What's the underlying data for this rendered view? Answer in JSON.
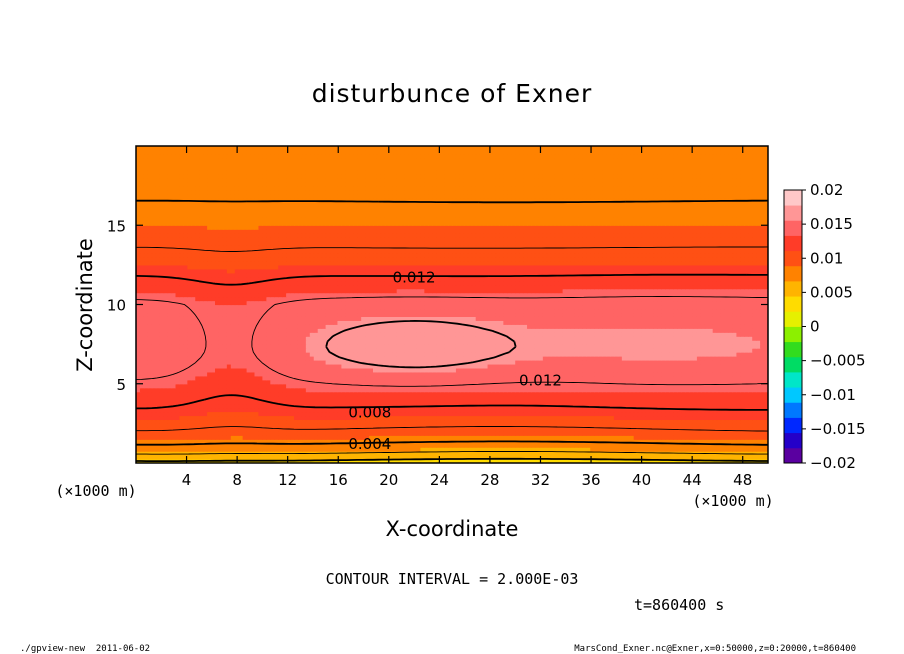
{
  "chart_data": {
    "type": "heatmap",
    "title": "disturbunce of Exner",
    "xlabel": "X-coordinate",
    "ylabel": "Z-coordinate",
    "x_unit": "(×1000 m)",
    "y_unit": "(×1000 m)",
    "xlim": [
      0,
      50
    ],
    "ylim": [
      0,
      20
    ],
    "x_ticks": [
      4,
      8,
      12,
      16,
      20,
      24,
      28,
      32,
      36,
      40,
      44,
      48
    ],
    "y_ticks": [
      5,
      10,
      15
    ],
    "colorbar": {
      "min": -0.02,
      "max": 0.02,
      "tick_values": [
        0.02,
        0.015,
        0.01,
        0.005,
        0,
        -0.005,
        -0.01,
        -0.015,
        -0.02
      ],
      "tick_labels": [
        "0.02",
        "0.015",
        "0.01",
        "0.005",
        "0",
        "−0.005",
        "−0.01",
        "−0.015",
        "−0.02"
      ],
      "level_colors": [
        "#5a00a0",
        "#2400c8",
        "#0028ff",
        "#0078ff",
        "#00c8ff",
        "#00e6c8",
        "#00dc64",
        "#32dc1e",
        "#8cf000",
        "#e6f000",
        "#ffdc00",
        "#ffb400",
        "#ff8200",
        "#ff5014",
        "#ff3c28",
        "#ff6464",
        "#ff9696",
        "#ffc8c8"
      ]
    },
    "contour_interval": 0.002,
    "contour_labels": [
      {
        "label": "0.012",
        "x": 22,
        "z": 11.7
      },
      {
        "label": "0.012",
        "x": 32,
        "z": 5.2
      },
      {
        "label": "0.008",
        "x": 18.5,
        "z": 3.2
      },
      {
        "label": "0.004",
        "x": 18.5,
        "z": 1.2
      }
    ],
    "field_description": "Exner disturbance maximum (~0.016) near x=22, z=7.3; minimum (~0.003) near z=0; decreasing to ~0.006 at z=20"
  },
  "annotations": {
    "contour_interval_text": "CONTOUR INTERVAL = 2.000E-03",
    "time_text": "t=860400 s",
    "footer_left": "./gpview-new  2011-06-02",
    "footer_right": "MarsCond_Exner.nc@Exner,x=0:50000,z=0:20000,t=860400"
  }
}
